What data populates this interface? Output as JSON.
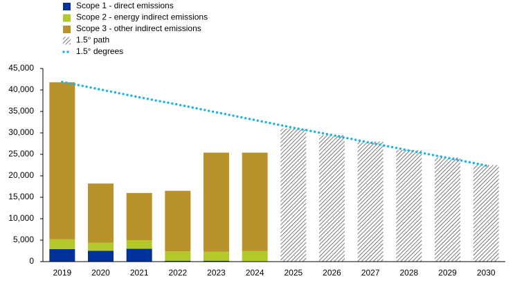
{
  "chart_data": {
    "type": "bar",
    "stacked": true,
    "categories": [
      "2019",
      "2020",
      "2021",
      "2022",
      "2023",
      "2024",
      "2025",
      "2026",
      "2027",
      "2028",
      "2029",
      "2030"
    ],
    "series": [
      {
        "name": "Scope 1 - direct emissions",
        "color": "#003299",
        "values": [
          2900,
          2500,
          3000,
          200,
          200,
          100,
          null,
          null,
          null,
          null,
          null,
          null
        ]
      },
      {
        "name": "Scope 2 - energy indirect emissions",
        "color": "#b4c82a",
        "values": [
          2300,
          1900,
          2000,
          2200,
          2100,
          2400,
          null,
          null,
          null,
          null,
          null,
          null
        ]
      },
      {
        "name": "Scope 3 - other indirect emissions",
        "color": "#b8922a",
        "values": [
          36600,
          13800,
          11000,
          14100,
          23100,
          22900,
          null,
          null,
          null,
          null,
          null,
          null
        ]
      },
      {
        "name": "1.5° path",
        "color": "#555555",
        "hatch": true,
        "values": [
          null,
          null,
          null,
          null,
          null,
          null,
          31000,
          29500,
          28000,
          26000,
          24300,
          22500
        ]
      },
      {
        "name": "1.5° degrees",
        "color": "#1fb3e6",
        "type": "line",
        "values": [
          41900,
          40100,
          38300,
          36600,
          34800,
          33000,
          31200,
          29500,
          27700,
          25900,
          24200,
          22400
        ]
      }
    ],
    "ylim": [
      0,
      45000
    ],
    "yticks": [
      0,
      {
        "value": 5000,
        "label": "5,000"
      },
      {
        "value": 10000,
        "label": "10,000"
      },
      {
        "value": 15000,
        "label": "15,000"
      },
      {
        "value": 20000,
        "label": "20,000"
      },
      {
        "value": 25000,
        "label": "25,000"
      },
      {
        "value": 30000,
        "label": "30,000"
      },
      {
        "value": 35000,
        "label": "35,000"
      },
      {
        "value": 40000,
        "label": "40,000"
      },
      {
        "value": 45000,
        "label": "45,000"
      }
    ]
  }
}
